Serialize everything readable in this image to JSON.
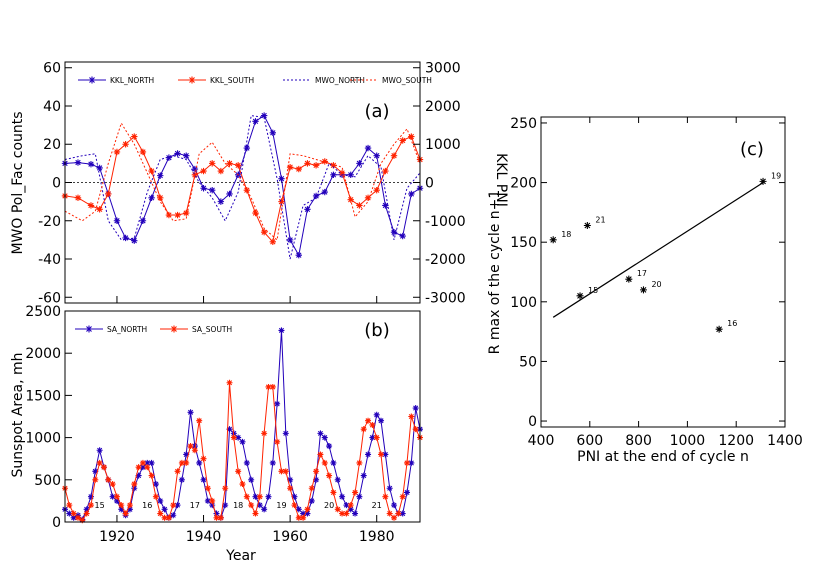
{
  "colors": {
    "north": "#2200bb",
    "south": "#ff2200",
    "axes": "#000000"
  },
  "chart_data": [
    {
      "type": "line",
      "panel_label": "(a)",
      "ylabel": "MWO Pol_Fac counts",
      "ylabel_right": "KKL PNI",
      "xlim": [
        1908,
        1990
      ],
      "ylim": [
        -63,
        63
      ],
      "ylim_right": [
        -3150,
        3150
      ],
      "yticks": [
        -60,
        -40,
        -20,
        0,
        20,
        40,
        60
      ],
      "yticks_right": [
        -3000,
        -2000,
        -1000,
        0,
        1000,
        2000,
        3000
      ],
      "legend": "top",
      "series": [
        {
          "name": "KKL_NORTH",
          "style": "solid-star",
          "axis": "right",
          "color": "north",
          "x": [
            1908,
            1911,
            1914,
            1916,
            1918,
            1920,
            1922,
            1924,
            1926,
            1928,
            1930,
            1932,
            1934,
            1936,
            1938,
            1940,
            1942,
            1944,
            1946,
            1948,
            1950,
            1952,
            1954,
            1956,
            1958,
            1960,
            1962,
            1964,
            1966,
            1968,
            1970,
            1972,
            1974,
            1976,
            1978,
            1980,
            1982,
            1984,
            1986,
            1988,
            1990
          ],
          "y": [
            500,
            520,
            480,
            380,
            -300,
            -1000,
            -1450,
            -1520,
            -1000,
            -400,
            180,
            650,
            760,
            700,
            350,
            -150,
            -200,
            -500,
            -300,
            200,
            900,
            1600,
            1750,
            1300,
            100,
            -1500,
            -1900,
            -700,
            -350,
            -250,
            200,
            200,
            200,
            500,
            900,
            700,
            -600,
            -1300,
            -1400,
            -300,
            -150
          ]
        },
        {
          "name": "KKL_SOUTH",
          "style": "solid-star",
          "axis": "right",
          "color": "south",
          "x": [
            1908,
            1911,
            1914,
            1916,
            1918,
            1920,
            1922,
            1924,
            1926,
            1928,
            1930,
            1932,
            1934,
            1936,
            1938,
            1940,
            1942,
            1944,
            1946,
            1948,
            1950,
            1952,
            1954,
            1956,
            1958,
            1960,
            1962,
            1964,
            1966,
            1968,
            1970,
            1972,
            1974,
            1976,
            1978,
            1980,
            1982,
            1984,
            1986,
            1988,
            1990
          ],
          "y": [
            -350,
            -400,
            -600,
            -700,
            -300,
            800,
            1000,
            1200,
            800,
            300,
            -400,
            -850,
            -850,
            -800,
            200,
            300,
            500,
            300,
            500,
            450,
            -200,
            -800,
            -1300,
            -1550,
            -500,
            400,
            350,
            500,
            450,
            550,
            450,
            250,
            -450,
            -600,
            -400,
            -200,
            300,
            700,
            1100,
            1200,
            600
          ]
        },
        {
          "name": "MWO_NORTH",
          "style": "dotted",
          "axis": "left",
          "color": "north",
          "x": [
            1908,
            1912,
            1915,
            1918,
            1921,
            1924,
            1927,
            1930,
            1933,
            1936,
            1939,
            1942,
            1945,
            1948,
            1951,
            1954,
            1957,
            1960,
            1963,
            1966,
            1969,
            1972,
            1975,
            1978,
            1981,
            1984,
            1987,
            1990
          ],
          "y": [
            12,
            14,
            15,
            -20,
            -30,
            -29,
            -5,
            12,
            14,
            12,
            0,
            -8,
            -20,
            -5,
            35,
            34,
            2,
            -40,
            -12,
            -8,
            10,
            4,
            3,
            14,
            8,
            -30,
            -3,
            5
          ]
        },
        {
          "name": "MWO_SOUTH",
          "style": "dotted",
          "axis": "left",
          "color": "south",
          "x": [
            1908,
            1912,
            1915,
            1918,
            1921,
            1924,
            1927,
            1930,
            1933,
            1936,
            1939,
            1942,
            1945,
            1948,
            1951,
            1954,
            1957,
            1960,
            1963,
            1966,
            1969,
            1972,
            1975,
            1978,
            1981,
            1984,
            1987,
            1990
          ],
          "y": [
            -15,
            -20,
            -15,
            10,
            31,
            20,
            5,
            -10,
            -20,
            -19,
            15,
            21,
            10,
            4,
            -8,
            -24,
            -30,
            15,
            14,
            12,
            10,
            8,
            -18,
            -10,
            10,
            20,
            28,
            10
          ]
        }
      ]
    },
    {
      "type": "line",
      "panel_label": "(b)",
      "ylabel": "Sunspot Area, mh",
      "xlabel": "Year",
      "xlim": [
        1908,
        1990
      ],
      "ylim": [
        0,
        2500
      ],
      "xticks": [
        1920,
        1940,
        1960,
        1980
      ],
      "yticks": [
        0,
        500,
        1000,
        1500,
        2000,
        2500
      ],
      "legend": "top-left",
      "cycle_labels": [
        {
          "label": "15",
          "x": 1916
        },
        {
          "label": "16",
          "x": 1927
        },
        {
          "label": "17",
          "x": 1938
        },
        {
          "label": "18",
          "x": 1948
        },
        {
          "label": "19",
          "x": 1958
        },
        {
          "label": "20",
          "x": 1969
        },
        {
          "label": "21",
          "x": 1980
        }
      ],
      "series": [
        {
          "name": "SA_NORTH",
          "color": "north",
          "x": [
            1908,
            1909,
            1910,
            1911,
            1912,
            1913,
            1914,
            1915,
            1916,
            1917,
            1918,
            1919,
            1920,
            1921,
            1922,
            1923,
            1924,
            1925,
            1926,
            1927,
            1928,
            1929,
            1930,
            1931,
            1932,
            1933,
            1934,
            1935,
            1936,
            1937,
            1938,
            1939,
            1940,
            1941,
            1942,
            1943,
            1944,
            1945,
            1946,
            1947,
            1948,
            1949,
            1950,
            1951,
            1952,
            1953,
            1954,
            1955,
            1956,
            1957,
            1958,
            1959,
            1960,
            1961,
            1962,
            1963,
            1964,
            1965,
            1966,
            1967,
            1968,
            1969,
            1970,
            1971,
            1972,
            1973,
            1974,
            1975,
            1976,
            1977,
            1978,
            1979,
            1980,
            1981,
            1982,
            1983,
            1984,
            1985,
            1986,
            1987,
            1988,
            1989,
            1990
          ],
          "y": [
            150,
            100,
            50,
            80,
            30,
            150,
            300,
            600,
            850,
            650,
            500,
            300,
            250,
            150,
            80,
            150,
            400,
            550,
            650,
            700,
            700,
            450,
            250,
            150,
            50,
            80,
            200,
            500,
            800,
            1300,
            900,
            700,
            500,
            250,
            200,
            100,
            50,
            200,
            1100,
            1050,
            1000,
            950,
            700,
            500,
            300,
            200,
            150,
            300,
            700,
            1400,
            2270,
            1050,
            500,
            300,
            150,
            100,
            100,
            250,
            500,
            1050,
            1000,
            900,
            700,
            500,
            300,
            200,
            150,
            100,
            300,
            550,
            800,
            1000,
            1270,
            1200,
            800,
            400,
            200,
            100,
            100,
            350,
            700,
            1350,
            1100
          ]
        },
        {
          "name": "SA_SOUTH",
          "color": "south",
          "x": [
            1908,
            1909,
            1910,
            1911,
            1912,
            1913,
            1914,
            1915,
            1916,
            1917,
            1918,
            1919,
            1920,
            1921,
            1922,
            1923,
            1924,
            1925,
            1926,
            1927,
            1928,
            1929,
            1930,
            1931,
            1932,
            1933,
            1934,
            1935,
            1936,
            1937,
            1938,
            1939,
            1940,
            1941,
            1942,
            1943,
            1944,
            1945,
            1946,
            1947,
            1948,
            1949,
            1950,
            1951,
            1952,
            1953,
            1954,
            1955,
            1956,
            1957,
            1958,
            1959,
            1960,
            1961,
            1962,
            1963,
            1964,
            1965,
            1966,
            1967,
            1968,
            1969,
            1970,
            1971,
            1972,
            1973,
            1974,
            1975,
            1976,
            1977,
            1978,
            1979,
            1980,
            1981,
            1982,
            1983,
            1984,
            1985,
            1986,
            1987,
            1988,
            1989,
            1990
          ],
          "y": [
            400,
            200,
            100,
            50,
            20,
            100,
            200,
            500,
            700,
            650,
            500,
            450,
            300,
            200,
            100,
            200,
            450,
            650,
            700,
            650,
            550,
            300,
            100,
            50,
            50,
            200,
            600,
            700,
            700,
            900,
            850,
            1200,
            750,
            400,
            250,
            50,
            50,
            400,
            1650,
            1000,
            600,
            450,
            300,
            200,
            100,
            300,
            1050,
            1600,
            1600,
            950,
            600,
            600,
            400,
            200,
            50,
            50,
            150,
            400,
            600,
            800,
            700,
            550,
            350,
            150,
            100,
            100,
            200,
            350,
            700,
            1100,
            1200,
            1150,
            1000,
            800,
            300,
            100,
            50,
            100,
            300,
            700,
            1250,
            1100,
            1000
          ]
        }
      ]
    },
    {
      "type": "scatter",
      "panel_label": "(c)",
      "xlabel": "PNI at the end of cycle n",
      "ylabel": "R max of the cycle n+1",
      "xlim": [
        400,
        1400
      ],
      "ylim": [
        -5,
        255
      ],
      "xticks": [
        400,
        600,
        800,
        1000,
        1200,
        1400
      ],
      "yticks": [
        0,
        50,
        100,
        150,
        200,
        250
      ],
      "points": [
        {
          "label": "15",
          "x": 560,
          "y": 105
        },
        {
          "label": "16",
          "x": 1130,
          "y": 77
        },
        {
          "label": "17",
          "x": 760,
          "y": 119
        },
        {
          "label": "18",
          "x": 450,
          "y": 152
        },
        {
          "label": "19",
          "x": 1310,
          "y": 201
        },
        {
          "label": "20",
          "x": 820,
          "y": 110
        },
        {
          "label": "21",
          "x": 590,
          "y": 164
        }
      ],
      "fit_line": {
        "x": [
          450,
          1310
        ],
        "y": [
          87,
          200
        ]
      }
    }
  ]
}
